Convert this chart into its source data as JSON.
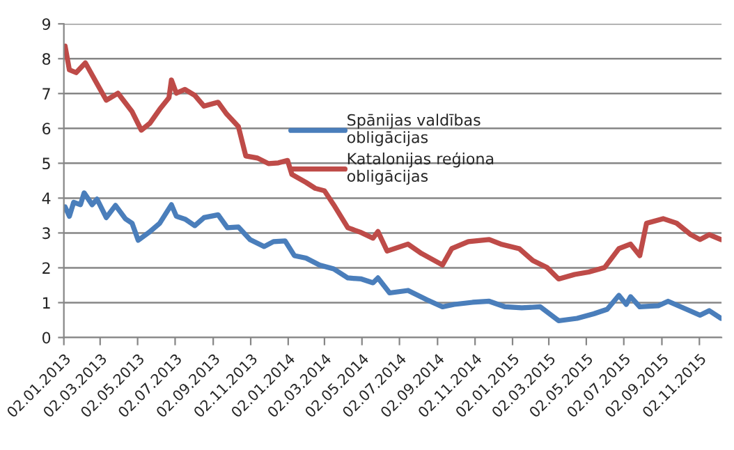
{
  "chart_data": {
    "type": "line",
    "xlim": [
      "2013-01-02",
      "2015-12-08"
    ],
    "xticks": [
      {
        "value": "2013-01-02",
        "label": "02.01.2013"
      },
      {
        "value": "2013-03-02",
        "label": "02.03.2013"
      },
      {
        "value": "2013-05-02",
        "label": "02.05.2013"
      },
      {
        "value": "2013-07-02",
        "label": "02.07.2013"
      },
      {
        "value": "2013-09-02",
        "label": "02.09.2013"
      },
      {
        "value": "2013-11-02",
        "label": "02.11.2013"
      },
      {
        "value": "2014-01-02",
        "label": "02.01.2014"
      },
      {
        "value": "2014-03-02",
        "label": "02.03.2014"
      },
      {
        "value": "2014-05-02",
        "label": "02.05.2014"
      },
      {
        "value": "2014-07-02",
        "label": "02.07.2014"
      },
      {
        "value": "2014-09-02",
        "label": "02.09.2014"
      },
      {
        "value": "2014-11-02",
        "label": "02.11.2014"
      },
      {
        "value": "2015-01-02",
        "label": "02.01.2015"
      },
      {
        "value": "2015-03-02",
        "label": "02.03.2015"
      },
      {
        "value": "2015-05-02",
        "label": "02.05.2015"
      },
      {
        "value": "2015-07-02",
        "label": "02.07.2015"
      },
      {
        "value": "2015-09-02",
        "label": "02.09.2015"
      },
      {
        "value": "2015-11-02",
        "label": "02.11.2015"
      }
    ],
    "ylim": [
      0,
      9
    ],
    "yticks": [
      0,
      1,
      2,
      3,
      4,
      5,
      6,
      7,
      8,
      9
    ],
    "grid": "y",
    "legend": "center",
    "series": [
      {
        "name": "Spānijas valdības obligācijas",
        "color": "#4a7ebb",
        "x": [
          "2013-01-04",
          "2013-01-11",
          "2013-01-18",
          "2013-01-29",
          "2013-02-04",
          "2013-02-17",
          "2013-02-25",
          "2013-03-12",
          "2013-03-27",
          "2013-04-12",
          "2013-04-23",
          "2013-05-03",
          "2013-05-20",
          "2013-06-07",
          "2013-06-26",
          "2013-07-04",
          "2013-07-19",
          "2013-08-03",
          "2013-08-18",
          "2013-09-10",
          "2013-09-25",
          "2013-10-13",
          "2013-11-01",
          "2013-11-24",
          "2013-12-09",
          "2013-12-28",
          "2014-01-12",
          "2014-01-31",
          "2014-02-22",
          "2014-03-17",
          "2014-04-09",
          "2014-05-01",
          "2014-05-20",
          "2014-05-28",
          "2014-06-16",
          "2014-07-16",
          "2014-08-16",
          "2014-09-10",
          "2014-09-29",
          "2014-10-29",
          "2014-11-25",
          "2014-12-21",
          "2015-01-17",
          "2015-02-16",
          "2015-03-18",
          "2015-04-17",
          "2015-05-14",
          "2015-06-05",
          "2015-06-24",
          "2015-07-06",
          "2015-07-13",
          "2015-07-28",
          "2015-08-27",
          "2015-09-12",
          "2015-10-12",
          "2015-11-03",
          "2015-11-18",
          "2015-12-07"
        ],
        "values": [
          3.75,
          3.48,
          3.88,
          3.81,
          4.15,
          3.81,
          3.97,
          3.44,
          3.79,
          3.41,
          3.28,
          2.79,
          3.01,
          3.28,
          3.81,
          3.48,
          3.39,
          3.21,
          3.44,
          3.52,
          3.15,
          3.17,
          2.81,
          2.61,
          2.75,
          2.77,
          2.35,
          2.28,
          2.08,
          1.97,
          1.71,
          1.68,
          1.57,
          1.71,
          1.28,
          1.35,
          1.08,
          0.88,
          0.95,
          1.01,
          1.04,
          0.88,
          0.85,
          0.88,
          0.48,
          0.55,
          0.68,
          0.81,
          1.21,
          0.95,
          1.17,
          0.88,
          0.91,
          1.04,
          0.81,
          0.64,
          0.77,
          0.55
        ]
      },
      {
        "name": "Katalonijas reģiona obligācijas",
        "color": "#be4b48",
        "x": [
          "2013-01-04",
          "2013-01-11",
          "2013-01-22",
          "2013-02-06",
          "2013-02-25",
          "2013-03-12",
          "2013-03-31",
          "2013-04-23",
          "2013-05-08",
          "2013-05-22",
          "2013-06-07",
          "2013-06-22",
          "2013-06-26",
          "2013-07-04",
          "2013-07-18",
          "2013-08-03",
          "2013-08-18",
          "2013-09-10",
          "2013-09-24",
          "2013-10-13",
          "2013-10-25",
          "2013-11-13",
          "2013-12-01",
          "2013-12-17",
          "2014-01-01",
          "2014-01-08",
          "2014-01-31",
          "2014-02-15",
          "2014-03-02",
          "2014-03-17",
          "2014-04-09",
          "2014-05-01",
          "2014-05-20",
          "2014-05-28",
          "2014-06-12",
          "2014-07-16",
          "2014-08-07",
          "2014-09-10",
          "2014-09-25",
          "2014-10-22",
          "2014-11-25",
          "2014-12-14",
          "2015-01-13",
          "2015-02-04",
          "2015-02-27",
          "2015-03-18",
          "2015-04-13",
          "2015-05-06",
          "2015-06-01",
          "2015-06-24",
          "2015-07-13",
          "2015-07-28",
          "2015-08-08",
          "2015-09-04",
          "2015-09-26",
          "2015-10-19",
          "2015-11-03",
          "2015-11-18",
          "2015-12-07"
        ],
        "values": [
          8.36,
          7.68,
          7.6,
          7.88,
          7.28,
          6.81,
          7.01,
          6.48,
          5.95,
          6.15,
          6.55,
          6.88,
          7.39,
          7.01,
          7.12,
          6.95,
          6.64,
          6.75,
          6.41,
          6.05,
          5.21,
          5.15,
          4.99,
          5.01,
          5.08,
          4.68,
          4.45,
          4.28,
          4.21,
          3.81,
          3.15,
          3.01,
          2.85,
          3.04,
          2.48,
          2.68,
          2.41,
          2.08,
          2.55,
          2.75,
          2.81,
          2.68,
          2.55,
          2.21,
          2.01,
          1.68,
          1.81,
          1.88,
          2.01,
          2.55,
          2.68,
          2.35,
          3.28,
          3.41,
          3.28,
          2.95,
          2.81,
          2.95,
          2.81
        ]
      }
    ]
  }
}
